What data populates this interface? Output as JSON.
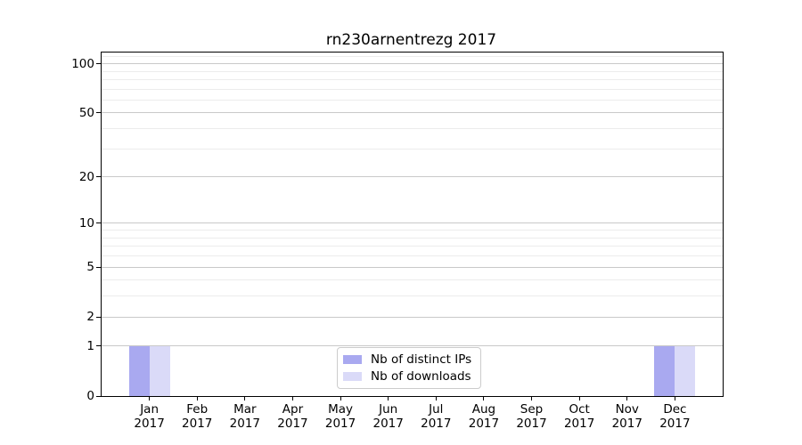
{
  "chart_data": {
    "type": "bar",
    "title": "rn230arnentrezg 2017",
    "categories": [
      "Jan",
      "Feb",
      "Mar",
      "Apr",
      "May",
      "Jun",
      "Jul",
      "Aug",
      "Sep",
      "Oct",
      "Nov",
      "Dec"
    ],
    "category_year": "2017",
    "series": [
      {
        "name": "Nb of distinct IPs",
        "color": "#a9a9f0",
        "values": [
          1,
          0,
          0,
          0,
          0,
          0,
          0,
          0,
          0,
          0,
          0,
          1
        ]
      },
      {
        "name": "Nb of downloads",
        "color": "#dadaf8",
        "values": [
          1,
          0,
          0,
          0,
          0,
          0,
          0,
          0,
          0,
          0,
          0,
          1
        ]
      }
    ],
    "yscale": "log1p",
    "ylim": [
      0,
      118
    ],
    "y_ticks": [
      0,
      1,
      2,
      5,
      10,
      20,
      50,
      100
    ],
    "y_minor_gridlines": [
      3,
      4,
      6,
      7,
      8,
      9,
      30,
      40,
      60,
      70,
      80,
      90,
      110
    ],
    "grid": true,
    "legend_position": "lower center",
    "xlabel": "",
    "ylabel": "",
    "colors": {
      "grid_major": "#c9c9c9",
      "grid_minor": "#ececec",
      "axis": "#000000",
      "text": "#000000",
      "legend_border": "#cccccc"
    }
  }
}
